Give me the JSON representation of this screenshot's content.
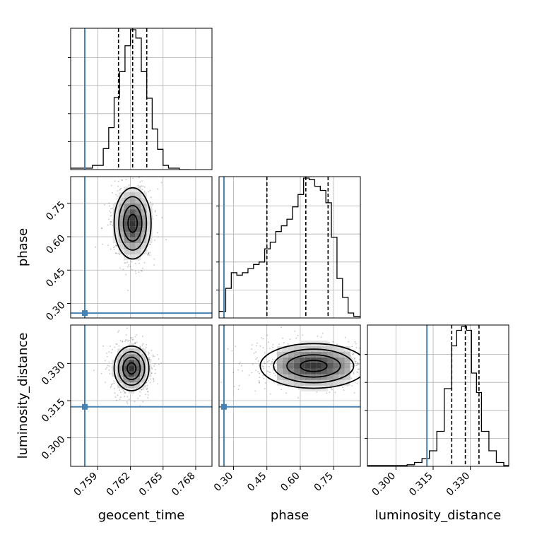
{
  "chart_data": {
    "type": "corner",
    "parameters": [
      "geocent_time",
      "phase",
      "luminosity_distance"
    ],
    "truths": {
      "geocent_time": 0.7578,
      "phase": 0.257,
      "luminosity_distance": 0.3125
    },
    "colors": {
      "truth": "#4682b4",
      "hist": "#000000",
      "grid": "#b0b0b0"
    },
    "grid": true,
    "ranges": {
      "geocent_time": [
        0.7565,
        0.7695
      ],
      "phase": [
        0.235,
        0.87
      ],
      "luminosity_distance": [
        0.2885,
        0.3455
      ]
    },
    "ticks": {
      "geocent_time": [
        "0.759",
        "0.762",
        "0.765",
        "0.768"
      ],
      "phase": [
        "0.30",
        "0.45",
        "0.60",
        "0.75"
      ],
      "luminosity_distance": [
        "0.300",
        "0.315",
        "0.330"
      ]
    },
    "quantiles": {
      "geocent_time": [
        0.7609,
        0.7622,
        0.7635
      ],
      "phase": [
        0.45,
        0.625,
        0.725
      ],
      "luminosity_distance": [
        0.3225,
        0.328,
        0.3335
      ]
    },
    "histograms": {
      "geocent_time": {
        "bins": [
          0.7565,
          0.7585,
          0.7595,
          0.76,
          0.7605,
          0.761,
          0.7615,
          0.762,
          0.7625,
          0.763,
          0.7635,
          0.764,
          0.7645,
          0.765,
          0.7655,
          0.7665,
          0.7675
        ],
        "counts": [
          2,
          6,
          30,
          60,
          103,
          140,
          177,
          200,
          188,
          140,
          102,
          58,
          29,
          6,
          2,
          0
        ]
      },
      "phase": {
        "bins": [
          0.235,
          0.265,
          0.29,
          0.315,
          0.34,
          0.365,
          0.39,
          0.415,
          0.44,
          0.465,
          0.49,
          0.515,
          0.54,
          0.565,
          0.59,
          0.615,
          0.64,
          0.665,
          0.69,
          0.715,
          0.74,
          0.765,
          0.79,
          0.815,
          0.84,
          0.87
        ],
        "counts": [
          8,
          36,
          55,
          52,
          55,
          60,
          65,
          68,
          84,
          92,
          105,
          112,
          120,
          135,
          150,
          170,
          168,
          160,
          155,
          140,
          98,
          48,
          25,
          6,
          2
        ]
      },
      "luminosity_distance": {
        "bins": [
          0.2885,
          0.3045,
          0.3075,
          0.3105,
          0.3135,
          0.3165,
          0.3195,
          0.3225,
          0.3245,
          0.3265,
          0.3285,
          0.3305,
          0.3325,
          0.3345,
          0.3375,
          0.3405,
          0.3435,
          0.3455
        ],
        "counts": [
          1,
          2,
          5,
          10,
          20,
          45,
          100,
          155,
          175,
          180,
          175,
          120,
          95,
          45,
          20,
          5,
          1
        ]
      }
    },
    "contours": {
      "phase_vs_geocent_time": {
        "center": [
          0.7622,
          0.66
        ],
        "sigma": [
          0.00085,
          0.08
        ]
      },
      "luminosity_distance_vs_geocent_time": {
        "center": [
          0.7621,
          0.328
        ],
        "sigma": [
          0.0008,
          0.0045
        ]
      },
      "luminosity_distance_vs_phase": {
        "center": [
          0.66,
          0.329
        ],
        "sigma": [
          0.12,
          0.0045
        ]
      }
    }
  }
}
